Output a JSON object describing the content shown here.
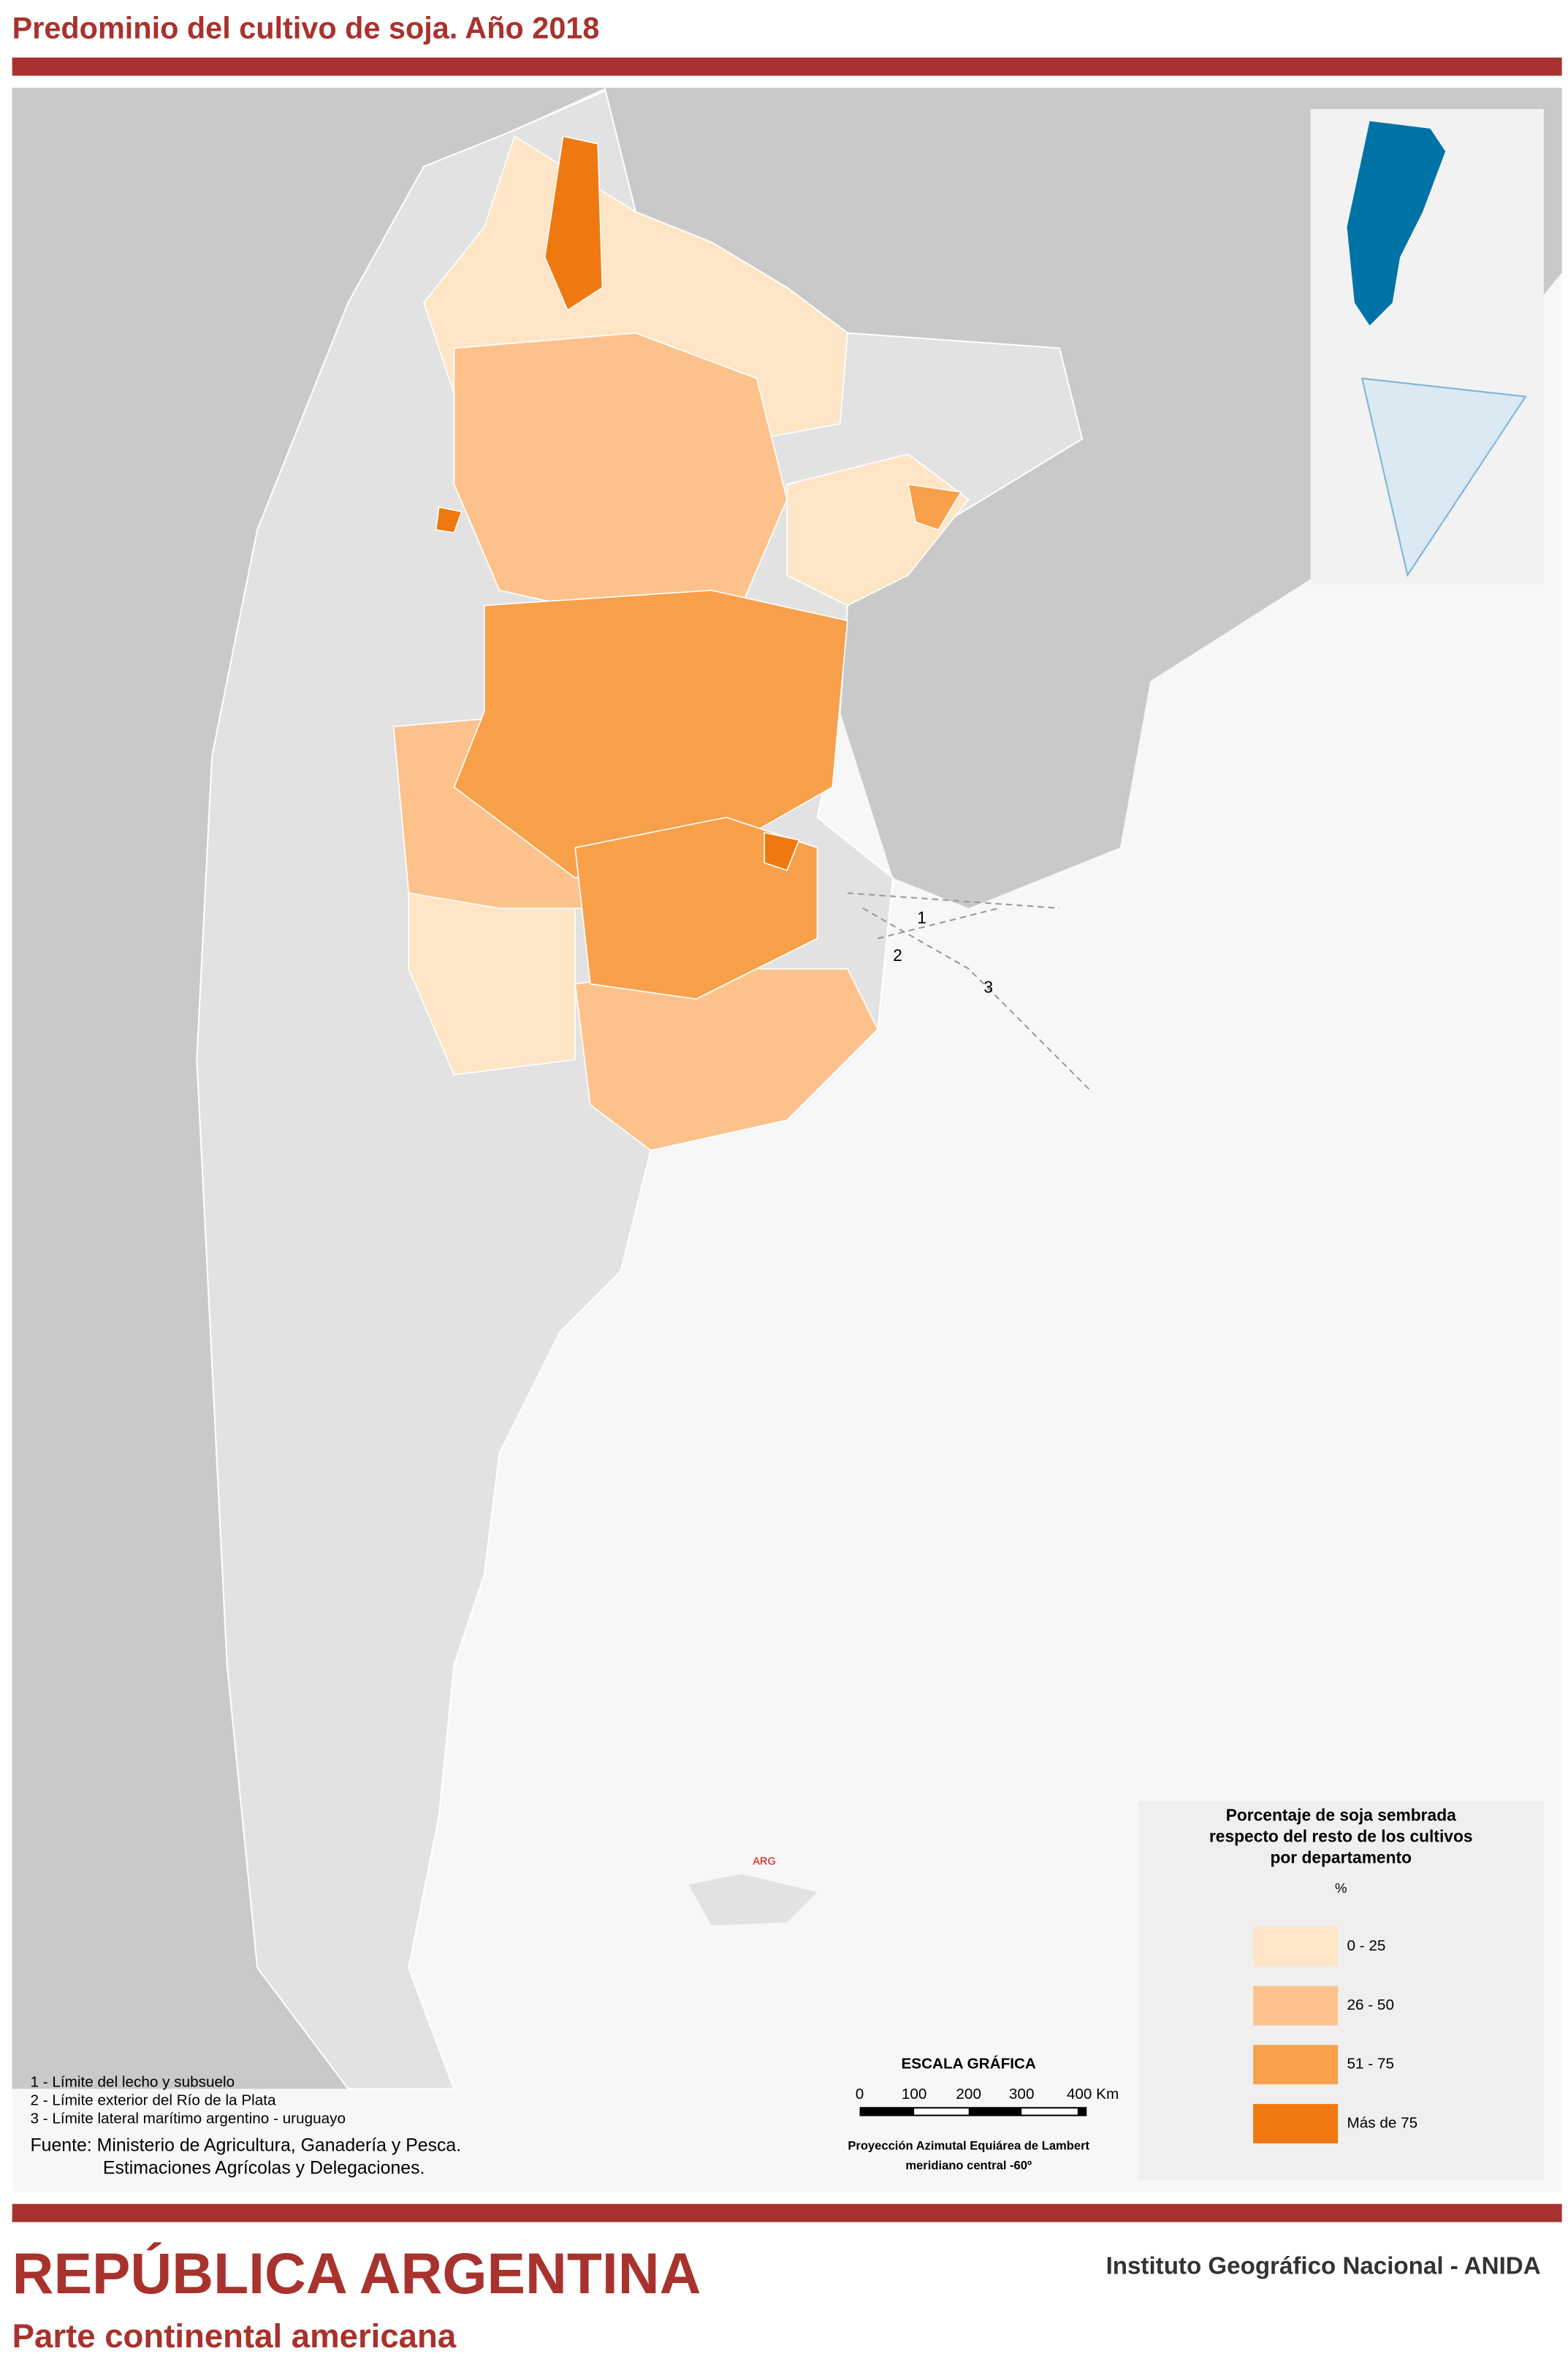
{
  "header": {
    "title": "Predominio del cultivo de soja. Año 2018"
  },
  "legend": {
    "title_lines": [
      "Porcentaje de soja sembrada",
      "respecto del resto de los cultivos",
      "por departamento"
    ],
    "unit": "%",
    "classes": [
      {
        "label": "0 - 25",
        "color": "#fde5c6"
      },
      {
        "label": "26 - 50",
        "color": "#fdc28c"
      },
      {
        "label": "51 - 75",
        "color": "#f9a04b"
      },
      {
        "label": "Más de 75",
        "color": "#ef7910"
      }
    ]
  },
  "notes": [
    "1 - Límite del lecho y subsuelo",
    "2 - Límite exterior del Río de la Plata",
    "3 - Límite lateral marítimo argentino - uruguayo"
  ],
  "source": [
    "Fuente: Ministerio de Agricultura, Ganadería y Pesca.",
    "Estimaciones Agrícolas y Delegaciones."
  ],
  "scale": {
    "title": "ESCALA GRÁFICA",
    "ticks": [
      "0",
      "100",
      "200",
      "300",
      "400 Km"
    ],
    "projection": [
      "Proyección Azimutal Equiárea de Lambert",
      "meridiano central -60º"
    ]
  },
  "map_labels": {
    "islands": "ARG",
    "limits": [
      "1",
      "2",
      "3"
    ]
  },
  "footer": {
    "title": "REPÚBLICA ARGENTINA",
    "subtitle": "Parte continental americana",
    "institute": "Instituto Geográfico Nacional - ANIDA"
  }
}
